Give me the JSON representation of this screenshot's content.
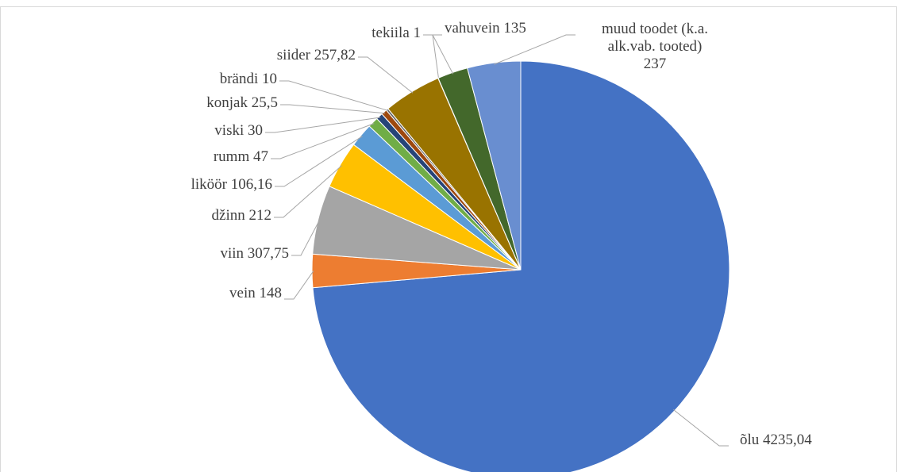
{
  "chart_data": {
    "type": "pie",
    "categories": [
      "õlu",
      "vein",
      "viin",
      "džinn",
      "liköör",
      "rumm",
      "viski",
      "konjak",
      "brändi",
      "siider",
      "tekiila",
      "vahuvein",
      "muud toodet (k.a. alk.vab. tooted)"
    ],
    "values": [
      4235.04,
      148,
      307.75,
      212,
      106.16,
      47,
      30,
      25.5,
      10,
      257.82,
      1,
      135,
      237
    ],
    "value_labels": [
      "4235,04",
      "148",
      "307,75",
      "212",
      "106,16",
      "47",
      "30",
      "25,5",
      "10",
      "257,82",
      "1",
      "135",
      "237"
    ],
    "colors": [
      "#4472c4",
      "#ed7d31",
      "#a5a5a5",
      "#ffc000",
      "#5b9bd5",
      "#70ad47",
      "#264478",
      "#9e480e",
      "#636363",
      "#997300",
      "#255e91",
      "#43682b",
      "#698ed0"
    ]
  }
}
